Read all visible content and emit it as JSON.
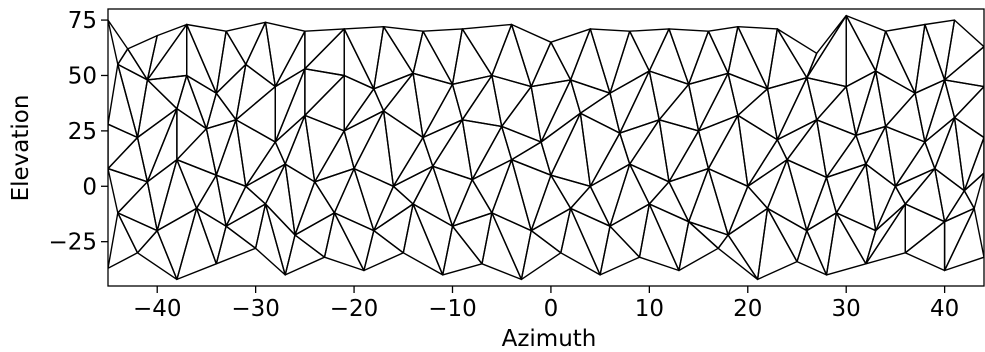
{
  "chart_data": {
    "type": "triangulation",
    "xlabel": "Azimuth",
    "ylabel": "Elevation",
    "xlim": [
      -45,
      44
    ],
    "ylim": [
      -45,
      80
    ],
    "xticks": [
      -40,
      -30,
      -20,
      -10,
      0,
      10,
      20,
      30,
      40
    ],
    "xtick_labels": [
      "−40",
      "−30",
      "−20",
      "−10",
      "0",
      "10",
      "20",
      "30",
      "40"
    ],
    "yticks": [
      -25,
      0,
      25,
      50,
      75
    ],
    "ytick_labels": [
      "−25",
      "0",
      "25",
      "50",
      "75"
    ],
    "grid": false,
    "line_color": "#000000",
    "rows": [
      [
        -45,
        75,
        -43,
        62,
        -40,
        68,
        -37,
        73,
        -33,
        70,
        -29,
        74,
        -25,
        70,
        -21,
        71,
        -17,
        72,
        -13,
        70,
        -9,
        71,
        -4,
        73,
        0,
        65,
        4,
        71,
        8,
        70,
        12,
        71,
        16,
        70,
        19,
        72,
        23,
        71,
        27,
        60,
        30,
        77,
        34,
        70,
        38,
        73,
        41,
        75,
        44,
        63
      ],
      [
        -44,
        55,
        -41,
        48,
        -37,
        50,
        -34,
        42,
        -31,
        55,
        -28,
        45,
        -25,
        53,
        -21,
        50,
        -18,
        44,
        -14,
        51,
        -10,
        46,
        -6,
        50,
        -2,
        45,
        2,
        48,
        6,
        42,
        10,
        52,
        14,
        46,
        18,
        51,
        22,
        44,
        26,
        49,
        30,
        45,
        33,
        52,
        37,
        42,
        40,
        48,
        44,
        45
      ],
      [
        -45,
        28,
        -42,
        22,
        -38,
        35,
        -35,
        26,
        -32,
        30,
        -28,
        20,
        -25,
        32,
        -21,
        25,
        -17,
        34,
        -13,
        22,
        -9,
        30,
        -5,
        27,
        -1,
        20,
        3,
        33,
        7,
        24,
        11,
        30,
        15,
        25,
        19,
        32,
        23,
        21,
        27,
        30,
        31,
        23,
        34,
        27,
        38,
        20,
        41,
        31,
        44,
        22
      ],
      [
        -45,
        8,
        -41,
        2,
        -38,
        12,
        -34,
        5,
        -31,
        0,
        -27,
        10,
        -24,
        2,
        -20,
        8,
        -16,
        0,
        -12,
        9,
        -8,
        3,
        -4,
        12,
        0,
        5,
        4,
        0,
        8,
        10,
        12,
        2,
        16,
        8,
        20,
        0,
        24,
        12,
        28,
        4,
        32,
        10,
        35,
        0,
        39,
        8,
        42,
        -2,
        44,
        6
      ],
      [
        -44,
        -12,
        -40,
        -20,
        -36,
        -10,
        -33,
        -18,
        -29,
        -8,
        -26,
        -22,
        -22,
        -12,
        -18,
        -20,
        -14,
        -8,
        -10,
        -18,
        -6,
        -12,
        -2,
        -20,
        2,
        -10,
        6,
        -18,
        10,
        -8,
        14,
        -16,
        18,
        -22,
        22,
        -10,
        26,
        -20,
        29,
        -12,
        33,
        -20,
        36,
        -8,
        40,
        -16,
        43,
        -10
      ],
      [
        -45,
        -37,
        -42,
        -30,
        -38,
        -42,
        -34,
        -35,
        -30,
        -28,
        -27,
        -40,
        -23,
        -32,
        -19,
        -38,
        -15,
        -30,
        -11,
        -40,
        -7,
        -35,
        -3,
        -42,
        1,
        -30,
        5,
        -40,
        9,
        -32,
        13,
        -38,
        17,
        -28,
        21,
        -42,
        25,
        -34,
        28,
        -40,
        32,
        -35,
        36,
        -30,
        40,
        -38,
        44,
        -32
      ]
    ]
  }
}
